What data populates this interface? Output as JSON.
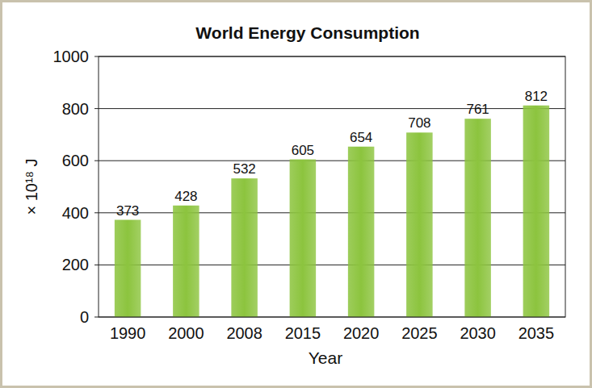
{
  "chart_data": {
    "type": "bar",
    "title": "World Energy Consumption",
    "x_label": "Year",
    "y_label": "× 10¹⁸ J",
    "categories": [
      "1990",
      "2000",
      "2008",
      "2015",
      "2020",
      "2025",
      "2030",
      "2035"
    ],
    "values": [
      373,
      428,
      532,
      605,
      654,
      708,
      761,
      812
    ],
    "color": "#8cc43e",
    "ylim": [
      0,
      1000
    ],
    "yticks": [
      0,
      200,
      400,
      600,
      800,
      1000
    ],
    "grid": true,
    "data_labels": true
  }
}
